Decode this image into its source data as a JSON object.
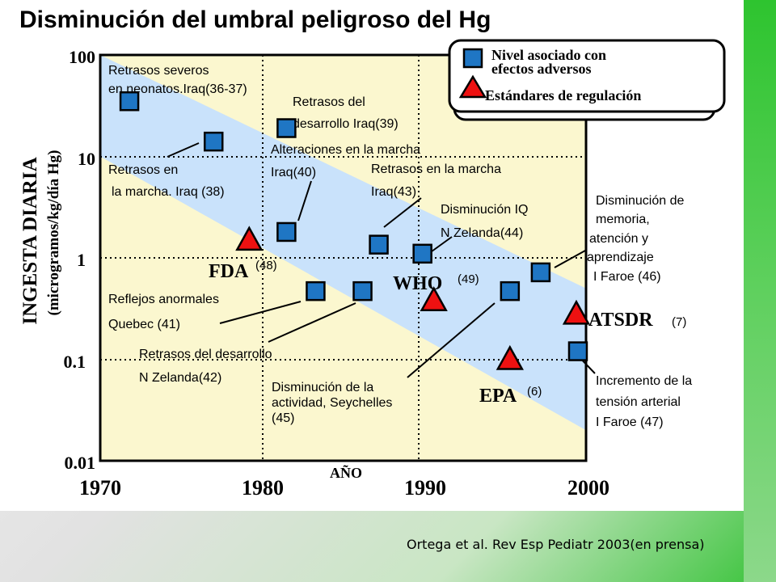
{
  "citation": "Ortega et al. Rev Esp Pediatr 2003(en prensa)",
  "colors": {
    "plot_background": "#fbf7cf",
    "risk_band": "#c9e2fb",
    "marker_square": "#1f76c4",
    "marker_triangle": "#ee1111",
    "accent_green": "#33c333"
  },
  "chart_data": {
    "type": "scatter",
    "title": "Disminución del umbral peligroso del Hg",
    "xlabel": "AÑO",
    "ylabel_line1": "INGESTA DIARIA",
    "ylabel_line2": "(microgramos/kg/día Hg)",
    "y_scale": "log",
    "xlim": [
      1970,
      2000
    ],
    "ylim": [
      0.01,
      100
    ],
    "x_ticks": [
      "1970",
      "1980",
      "1990",
      "2000"
    ],
    "y_ticks": [
      "100",
      "10",
      "1",
      "0.1",
      "0.01"
    ],
    "grid": "dotted at 10, 1, 0.1 and at 1980, 1990",
    "legend": {
      "position": "top-right",
      "items": [
        {
          "marker": "square",
          "label_line1": "Nivel asociado con",
          "label_line2": "efectos adversos"
        },
        {
          "marker": "triangle",
          "label": "Estándares de regulación"
        }
      ]
    },
    "band": {
      "description": "shaded decreasing threshold band",
      "upper": [
        [
          1970,
          100
        ],
        [
          2000,
          0.5
        ]
      ],
      "lower": [
        [
          1970,
          10
        ],
        [
          2000,
          0.02
        ]
      ]
    },
    "adverse_effects": [
      {
        "x": 1971.8,
        "y": 35
      },
      {
        "x": 1977.0,
        "y": 14
      },
      {
        "x": 1981.5,
        "y": 19
      },
      {
        "x": 1981.5,
        "y": 1.8
      },
      {
        "x": 1983.3,
        "y": 0.47
      },
      {
        "x": 1986.2,
        "y": 0.47
      },
      {
        "x": 1987.2,
        "y": 1.35
      },
      {
        "x": 1989.9,
        "y": 1.1
      },
      {
        "x": 1995.3,
        "y": 0.47
      },
      {
        "x": 1997.2,
        "y": 0.72
      },
      {
        "x": 1999.5,
        "y": 0.12
      }
    ],
    "regulatory_standards": [
      {
        "x": 1979.2,
        "y": 1.5,
        "label": "FDA",
        "ref": "(48)"
      },
      {
        "x": 1990.6,
        "y": 0.38,
        "label": "WHO",
        "ref": "(49)"
      },
      {
        "x": 1995.3,
        "y": 0.1,
        "label": "EPA",
        "ref": "(6)"
      },
      {
        "x": 1999.4,
        "y": 0.28,
        "label": "ATSDR",
        "ref": "(7)"
      }
    ],
    "annotations": [
      {
        "lines": [
          "Retrasos severos",
          "en neonatos.Iraq(36-37)"
        ]
      },
      {
        "lines": [
          "Retrasos del",
          "desarrollo Iraq(39)"
        ]
      },
      {
        "lines": [
          "Alteraciones en la marcha",
          "Iraq(40)"
        ]
      },
      {
        "lines": [
          "Retrasos en",
          "la marcha. Iraq (38)"
        ]
      },
      {
        "lines": [
          "Retrasos en la marcha",
          "Iraq(43)"
        ]
      },
      {
        "lines": [
          "Disminución IQ",
          "N Zelanda(44)"
        ]
      },
      {
        "lines": [
          "Disminución de",
          "memoria,",
          "atención y",
          "aprendizaje",
          "I Faroe (46)"
        ]
      },
      {
        "lines": [
          "Reflejos anormales",
          "Quebec (41)"
        ]
      },
      {
        "lines": [
          "Retrasos del desarrollo",
          "N Zelanda(42)"
        ]
      },
      {
        "lines": [
          "Disminución de la",
          "actividad, Seychelles",
          "(45)"
        ]
      },
      {
        "lines": [
          "Incremento de la",
          "tensión arterial",
          "I Faroe (47)"
        ]
      }
    ]
  }
}
